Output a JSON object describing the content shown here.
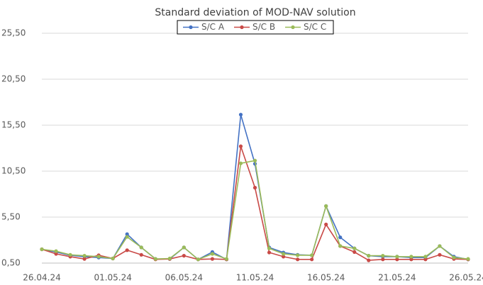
{
  "chart_data": {
    "type": "line",
    "title": "Standard deviation of MOD-NAV solution",
    "categories": [
      "26.04.24",
      null,
      null,
      null,
      null,
      "01.05.24",
      null,
      null,
      null,
      null,
      "06.05.24",
      null,
      null,
      null,
      null,
      "11.05.24",
      null,
      null,
      null,
      null,
      "16.05.24",
      null,
      null,
      null,
      null,
      "21.05.24",
      null,
      null,
      null,
      null,
      "26.05.24"
    ],
    "series": [
      {
        "name": "S/C A",
        "color": "#4472c4",
        "values": [
          2.0,
          1.7,
          1.35,
          1.2,
          1.1,
          1.0,
          3.65,
          2.2,
          0.95,
          0.95,
          2.2,
          0.9,
          1.7,
          0.9,
          16.65,
          11.3,
          2.2,
          1.65,
          1.4,
          1.35,
          6.7,
          3.3,
          2.1,
          1.3,
          1.2,
          1.2,
          1.1,
          1.1,
          2.35,
          1.2,
          0.9
        ]
      },
      {
        "name": "S/C B",
        "color": "#c94a47",
        "values": [
          2.0,
          1.5,
          1.2,
          0.95,
          1.35,
          1.0,
          1.9,
          1.4,
          0.9,
          0.95,
          1.3,
          0.9,
          0.95,
          0.9,
          13.2,
          8.7,
          1.65,
          1.2,
          0.9,
          0.9,
          4.7,
          2.35,
          1.7,
          0.8,
          0.9,
          0.9,
          0.9,
          0.9,
          1.4,
          0.95,
          0.9
        ]
      },
      {
        "name": "S/C C",
        "color": "#9bbb59",
        "values": [
          2.0,
          1.8,
          1.4,
          1.3,
          1.2,
          1.0,
          3.35,
          2.2,
          0.95,
          1.0,
          2.2,
          0.9,
          1.5,
          0.95,
          11.35,
          11.65,
          2.1,
          1.5,
          1.35,
          1.35,
          6.7,
          2.35,
          2.1,
          1.3,
          1.3,
          1.2,
          1.2,
          1.2,
          2.35,
          1.1,
          0.95
        ]
      }
    ],
    "ylim": [
      0.5,
      25.5
    ],
    "yticks": [
      {
        "value": 0.5,
        "label": "0,50"
      },
      {
        "value": 5.5,
        "label": "5,50"
      },
      {
        "value": 10.5,
        "label": "10,50"
      },
      {
        "value": 15.5,
        "label": "15,50"
      },
      {
        "value": 20.5,
        "label": "20,50"
      },
      {
        "value": 25.5,
        "label": "25,50"
      }
    ],
    "grid": true,
    "legend": "top"
  }
}
